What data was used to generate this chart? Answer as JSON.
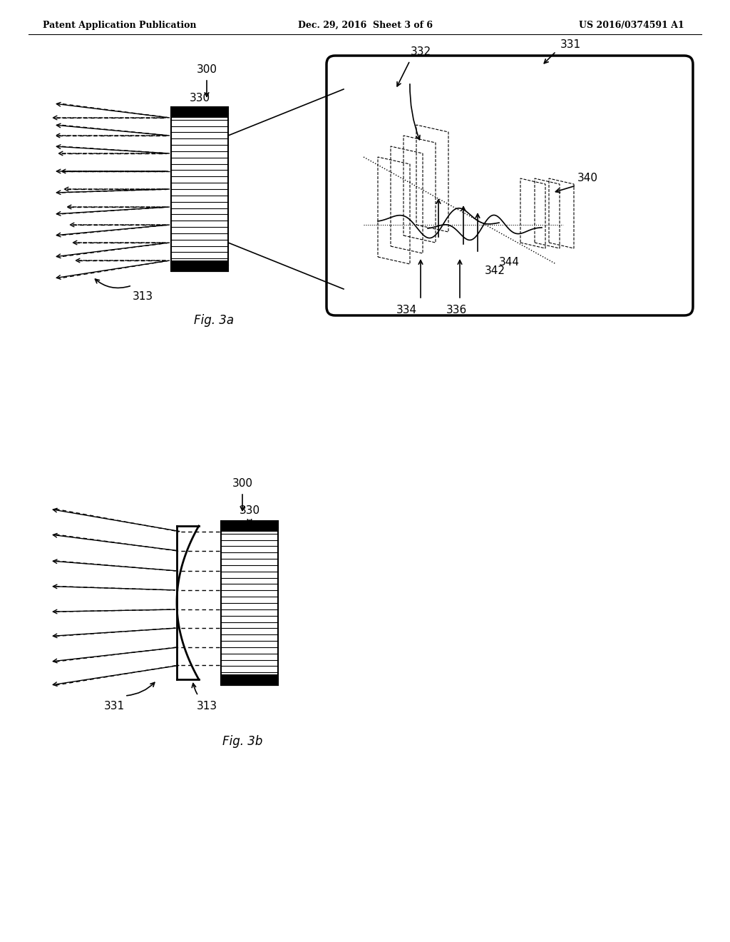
{
  "title_left": "Patent Application Publication",
  "title_center": "Dec. 29, 2016  Sheet 3 of 6",
  "title_right": "US 2016/0374591 A1",
  "fig3a_label": "Fig. 3a",
  "fig3b_label": "Fig. 3b",
  "bg_color": "#ffffff",
  "line_color": "#000000",
  "dashed_color": "#000000",
  "gray_color": "#888888",
  "light_gray": "#cccccc",
  "labels": {
    "300a": "300",
    "330a": "330",
    "313a": "313",
    "331a": "331",
    "332": "332",
    "334": "334",
    "336": "336",
    "340": "340",
    "342": "342",
    "344": "344",
    "300b": "300",
    "330b": "330",
    "313b": "313",
    "331b": "331"
  }
}
